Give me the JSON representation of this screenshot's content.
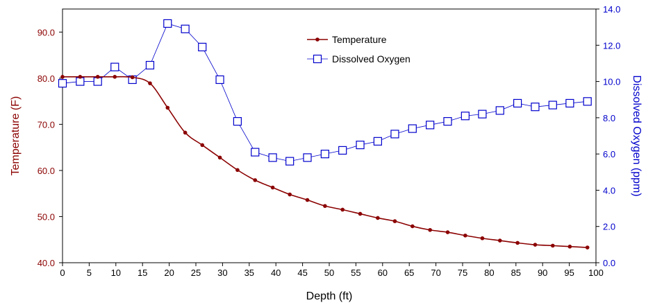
{
  "chart_data": {
    "type": "line",
    "title": "",
    "xlabel": "Depth (ft)",
    "ylabel_left": "Temperature (F)",
    "ylabel_right": "Dissolved Oxygen (ppm)",
    "xlim": [
      0,
      100
    ],
    "ylim_left": [
      40,
      95
    ],
    "ylim_right": [
      0,
      14
    ],
    "x_ticks": [
      "0",
      "5",
      "10",
      "15",
      "20",
      "25",
      "30",
      "35",
      "40",
      "45",
      "50",
      "55",
      "60",
      "65",
      "70",
      "75",
      "80",
      "85",
      "90",
      "95",
      "100"
    ],
    "y_left_ticks": [
      "40.0",
      "50.0",
      "60.0",
      "70.0",
      "80.0",
      "90.0"
    ],
    "y_right_ticks": [
      "0.0",
      "2.0",
      "4.0",
      "6.0",
      "8.0",
      "10.0",
      "12.0",
      "14.0"
    ],
    "grid": false,
    "legend_position": "top-center",
    "series": [
      {
        "name": "Temperature",
        "axis": "left",
        "color": "#8b0000",
        "marker": "dot",
        "x": [
          0,
          3.3,
          6.6,
          9.8,
          13.1,
          16.4,
          19.7,
          23.0,
          26.2,
          29.5,
          32.8,
          36.1,
          39.4,
          42.6,
          45.9,
          49.2,
          52.5,
          55.8,
          59.1,
          62.3,
          65.6,
          68.9,
          72.2,
          75.5,
          78.7,
          82.0,
          85.3,
          88.6,
          91.9,
          95.1,
          98.4
        ],
        "values": [
          80.3,
          80.3,
          80.3,
          80.3,
          80.2,
          78.9,
          73.6,
          68.2,
          65.5,
          62.8,
          60.1,
          57.9,
          56.3,
          54.8,
          53.6,
          52.3,
          51.5,
          50.6,
          49.7,
          49.0,
          47.9,
          47.1,
          46.6,
          45.9,
          45.3,
          44.8,
          44.3,
          43.9,
          43.7,
          43.5,
          43.3
        ]
      },
      {
        "name": "Dissolved Oxygen",
        "axis": "right",
        "color": "#0000cc",
        "marker": "open-square",
        "x": [
          0,
          3.3,
          6.6,
          9.8,
          13.1,
          16.4,
          19.7,
          23.0,
          26.2,
          29.5,
          32.8,
          36.1,
          39.4,
          42.6,
          45.9,
          49.2,
          52.5,
          55.8,
          59.1,
          62.3,
          65.6,
          68.9,
          72.2,
          75.5,
          78.7,
          82.0,
          85.3,
          88.6,
          91.9,
          95.1,
          98.4
        ],
        "values": [
          9.9,
          10.0,
          10.0,
          10.8,
          10.1,
          10.9,
          13.2,
          12.9,
          11.9,
          10.1,
          7.8,
          6.1,
          5.8,
          5.6,
          5.8,
          6.0,
          6.2,
          6.5,
          6.7,
          7.1,
          7.4,
          7.6,
          7.8,
          8.1,
          8.2,
          8.4,
          8.8,
          8.6,
          8.7,
          8.8,
          8.9
        ]
      }
    ],
    "colors": {
      "left_axis": "#8b0000",
      "right_axis": "#0000cc",
      "temperature": "#8b0000",
      "oxygen": "#0000cc"
    }
  }
}
